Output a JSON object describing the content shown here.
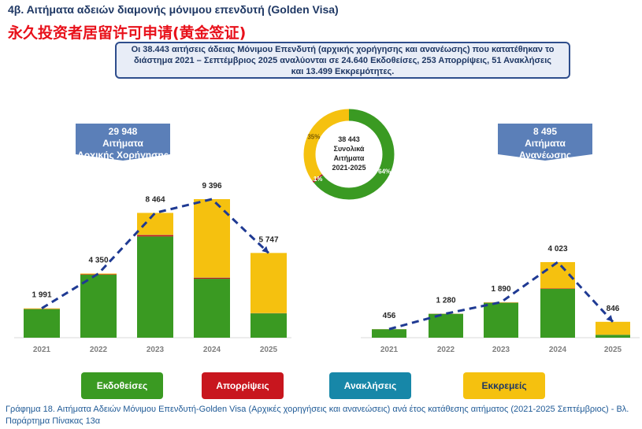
{
  "header": {
    "title": "4β. Αιτήματα αδειών διαμονής μόνιμου επενδυτή (Golden Visa)",
    "zh_title": "永久投资者居留许可申请(黄金签证)",
    "summary": "Οι 38.443 αιτήσεις άδειας Μόνιμου Επενδυτή (αρχικής χορήγησης και ανανέωσης) που κατατέθηκαν το διάστημα 2021 – Σεπτέμβριος 2025 αναλύονται σε 24.640 Εκδοθείσες, 253 Απορρίψεις, 51 Ανακλήσεις και 13.499 Εκκρεμότητες."
  },
  "callouts": {
    "initial_total": "29 948",
    "initial_label1": "Αιτήματα",
    "initial_label2": "Αρχικής Χορήγησης",
    "renewal_total": "8 495",
    "renewal_label1": "Αιτήματα",
    "renewal_label2": "Ανανέωσης"
  },
  "colors": {
    "issued": "#3a9a22",
    "rejected": "#c8161e",
    "revoked": "#1787a8",
    "pending": "#f5c10f",
    "navy": "#1f3a93",
    "callout": "#5b7fb8"
  },
  "legend": [
    {
      "label": "Εκδοθείσες",
      "color": "#3a9a22",
      "text_color": "#ffffff"
    },
    {
      "label": "Απορρίψεις",
      "color": "#c8161e",
      "text_color": "#ffffff"
    },
    {
      "label": "Ανακλήσεις",
      "color": "#1787a8",
      "text_color": "#ffffff"
    },
    {
      "label": "Εκκρεμείς",
      "color": "#f5c10f",
      "text_color": "#1f3864"
    }
  ],
  "caption": "Γράφημα 18.  Αιτήματα Αδειών Μόνιμου Επενδυτή-Golden Visa (Αρχικές χορηγήσεις και ανανεώσεις) ανά έτος κατάθεσης αιτήματος (2021-2025 Σεπτέμβριος) - Βλ. Παράρτημα  Πίνακας 13α",
  "chart_data": [
    {
      "type": "bar",
      "stacked": true,
      "title": "29 948 Αιτήματα Αρχικής Χορήγησης",
      "categories": [
        "2021",
        "2022",
        "2023",
        "2024",
        "2025"
      ],
      "totals": [
        1991,
        4350,
        8464,
        9396,
        5747
      ],
      "total_labels": [
        "1 991",
        "4 350",
        "8 464",
        "9 396",
        "5 747"
      ],
      "ylim": [
        0,
        9396
      ],
      "series": [
        {
          "name": "Εκδοθείσες",
          "values": [
            1940,
            4270,
            6870,
            4000,
            1650
          ]
        },
        {
          "name": "Απορρίψεις",
          "values": [
            10,
            30,
            90,
            60,
            10
          ]
        },
        {
          "name": "Ανακλήσεις",
          "values": [
            1,
            2,
            10,
            15,
            5
          ]
        },
        {
          "name": "Εκκρεμείς",
          "values": [
            40,
            48,
            1494,
            5321,
            4082
          ]
        }
      ]
    },
    {
      "type": "bar",
      "stacked": true,
      "title": "8 495 Αιτήματα Ανανέωσης",
      "categories": [
        "2021",
        "2022",
        "2023",
        "2024",
        "2025"
      ],
      "totals": [
        456,
        1280,
        1890,
        4023,
        846
      ],
      "total_labels": [
        "456",
        "1 280",
        "1 890",
        "4 023",
        "846"
      ],
      "ylim": [
        0,
        4023
      ],
      "series": [
        {
          "name": "Εκδοθείσες",
          "values": [
            450,
            1270,
            1860,
            2600,
            150
          ]
        },
        {
          "name": "Απορρίψεις",
          "values": [
            3,
            5,
            10,
            20,
            5
          ]
        },
        {
          "name": "Ανακλήσεις",
          "values": [
            0,
            1,
            2,
            3,
            1
          ]
        },
        {
          "name": "Εκκρεμείς",
          "values": [
            3,
            4,
            18,
            1400,
            690
          ]
        }
      ]
    },
    {
      "type": "pie",
      "title": "38 443 Συνολικά Αιτήματα 2021-2025",
      "center_labels": [
        "38 443",
        "Συνολικά",
        "Αιτήματα",
        "2021-2025"
      ],
      "labels": [
        "Εκδοθείσες",
        "Απορρίψεις",
        "Ανακλήσεις",
        "Εκκρεμείς"
      ],
      "values": [
        24640,
        253,
        51,
        13499
      ],
      "percent_labels": [
        "64%",
        "1%",
        "",
        "35%"
      ]
    }
  ]
}
